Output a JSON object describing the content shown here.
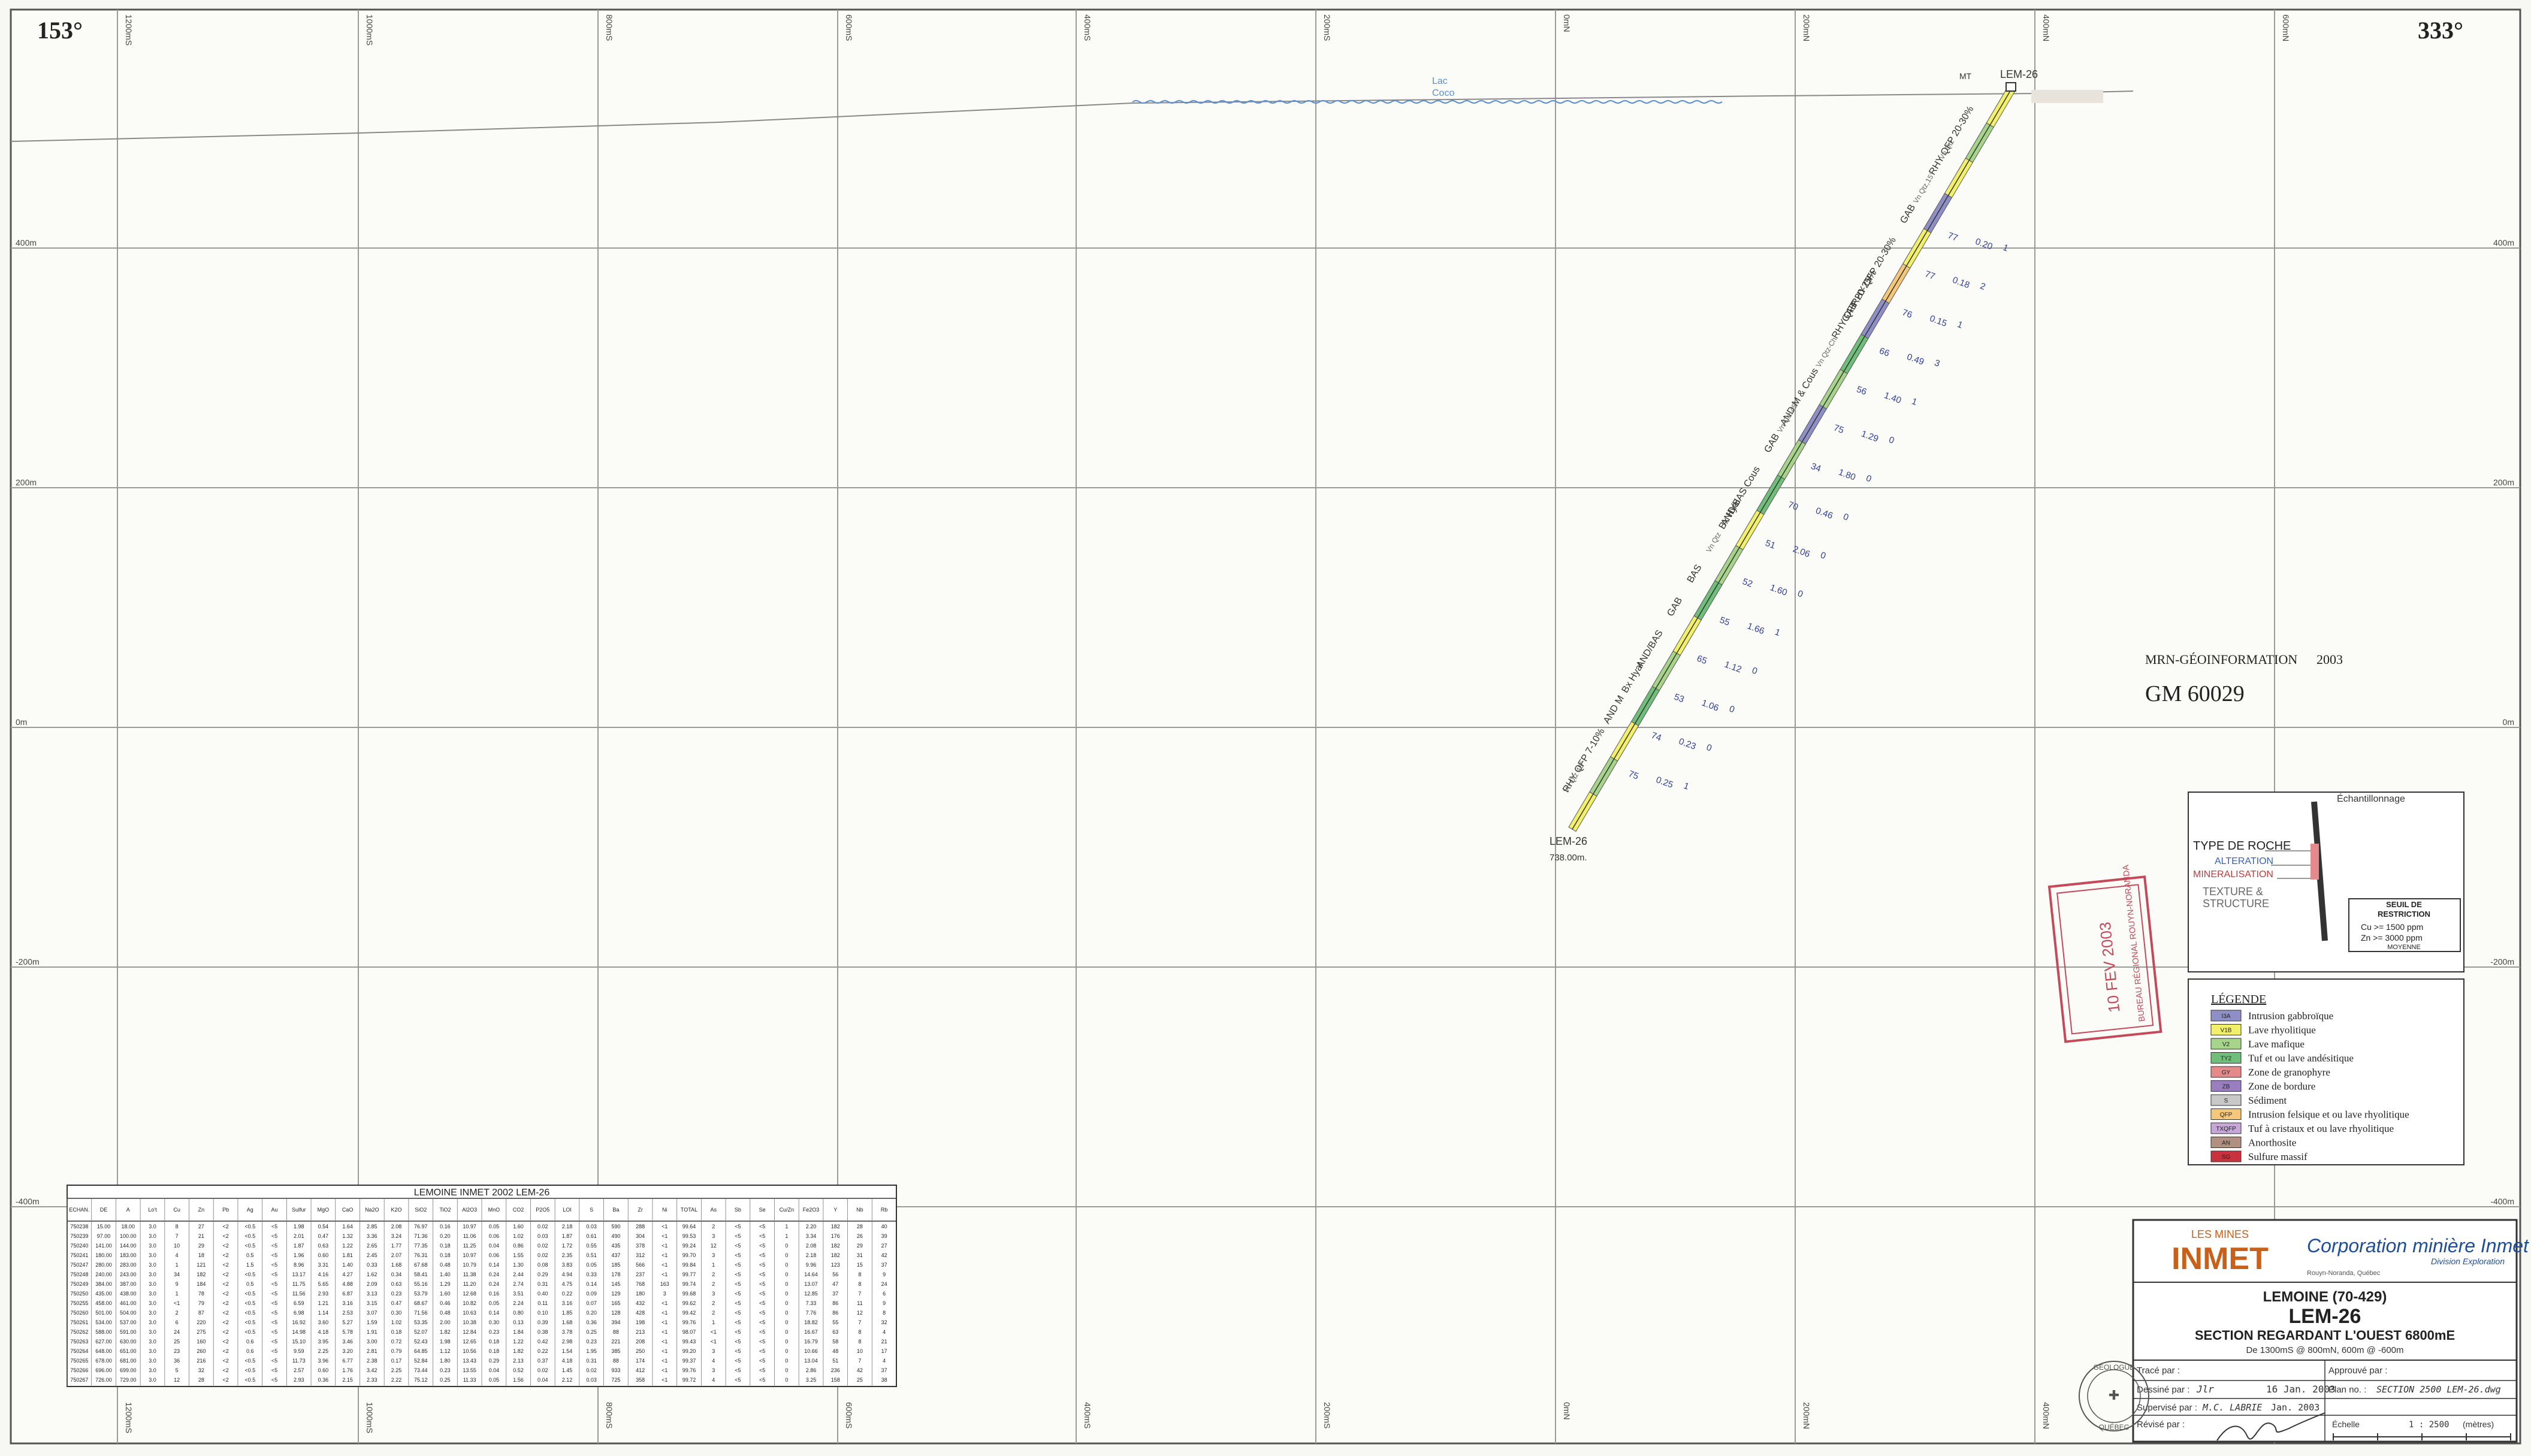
{
  "azimuth_left": "153°",
  "azimuth_right": "333°",
  "top_labels": [
    "1200mS",
    "1000mS",
    "800mS",
    "600mS",
    "400mS",
    "200mS",
    "0mN",
    "200mN",
    "400mN",
    "600mN"
  ],
  "bottom_labels": [
    "1200mS",
    "1000mS",
    "800mS",
    "600mS",
    "400mS",
    "200mS",
    "0mN",
    "200mN",
    "400mN"
  ],
  "elevation_labels": [
    "400m",
    "200m",
    "0m",
    "-200m",
    "-400m"
  ],
  "lake_label": [
    "Lac",
    "Coco"
  ],
  "hole": {
    "collar_label": "LEM-26",
    "collar_prefix": "MT",
    "end_label": "LEM-26",
    "end_depth": "738.00m."
  },
  "left_annotations": [
    "RHY QFP 20-30%",
    "Vn Qtz",
    "Vn Qtz,15°",
    "GAB",
    "RHY QFP 20-30%",
    "RHY QFP 20-25%",
    "GAB",
    "Vn Qtz-Chl",
    "AND M & Cous",
    "Vn Qtz 45°",
    "GAB",
    "AND/BAS Cous",
    "Bx Hyal",
    "Vn Qtz",
    "BAS",
    "GAB",
    "AND/BAS",
    "Bx Hyal",
    "AND M",
    "RHY QFP 7-10%",
    "Vn Qtz 45°"
  ],
  "assays": [
    [
      "77",
      "0.20",
      "1"
    ],
    [
      "77",
      "0.18",
      "2"
    ],
    [
      "76",
      "0.15",
      "1"
    ],
    [
      "66",
      "0.49",
      "3"
    ],
    [
      "56",
      "1.40",
      "1"
    ],
    [
      "75",
      "1.29",
      "0"
    ],
    [
      "34",
      "1.80",
      "0"
    ],
    [
      "70",
      "0.46",
      "0"
    ],
    [
      "51",
      "2.06",
      "0"
    ],
    [
      "52",
      "1.60",
      "0"
    ],
    [
      "55",
      "1.66",
      "1"
    ],
    [
      "65",
      "1.12",
      "0"
    ],
    [
      "53",
      "1.06",
      "0"
    ],
    [
      "74",
      "0.23",
      "0"
    ],
    [
      "75",
      "0.25",
      "1"
    ]
  ],
  "stamp": {
    "line1": "MRN-GÉOINFORMATION",
    "year": "2003",
    "id": "GM 60029"
  },
  "received_stamp": {
    "date": "10 FEV 2003",
    "office": "BUREAU RÉGIONAL ROUYN-NORANDA"
  },
  "key_box": {
    "echantillonnage": "Échantillonnage",
    "type_de_roche": "TYPE DE ROCHE",
    "alteration": "ALTERATION",
    "mineralisation": "MINERALISATION",
    "texture": "TEXTURE &",
    "structure": "STRUCTURE",
    "seuil_title": [
      "SEUIL DE",
      "RESTRICTION"
    ],
    "seuil_cu": "Cu >= 1500 ppm",
    "seuil_zn": "Zn >= 3000 ppm",
    "seuil_moy": "MOYENNE"
  },
  "legend": {
    "title": "LÉGENDE",
    "items": [
      {
        "code": "I3A",
        "label": "Intrusion gabbroïque",
        "color": "#8f8fc8"
      },
      {
        "code": "V1B",
        "label": "Lave rhyolitique",
        "color": "#f2ef6a"
      },
      {
        "code": "V2",
        "label": "Lave mafique",
        "color": "#a6d48a"
      },
      {
        "code": "TY2",
        "label": "Tuf et ou lave andésitique",
        "color": "#6fbf7a"
      },
      {
        "code": "GY",
        "label": "Zone de granophyre",
        "color": "#e48a8a"
      },
      {
        "code": "ZB",
        "label": "Zone de bordure",
        "color": "#9a7fc0"
      },
      {
        "code": "S",
        "label": "Sédiment",
        "color": "#c8c8c8"
      },
      {
        "code": "QFP",
        "label": "Intrusion felsique et ou lave rhyolitique",
        "color": "#f5c77a"
      },
      {
        "code": "TXQFP",
        "label": "Tuf à cristaux et ou lave rhyolitique",
        "color": "#c7a6d8"
      },
      {
        "code": "AN",
        "label": "Anorthosite",
        "color": "#b09080"
      },
      {
        "code": "SG",
        "label": "Sulfure massif",
        "color": "#c8323c"
      }
    ]
  },
  "table": {
    "title": "LEMOINE INMET 2002     LEM-26",
    "columns": [
      "ECHAN.",
      "DE",
      "A",
      "Lo't",
      "Cu",
      "Zn",
      "Pb",
      "Ag",
      "Au",
      "Sulfur",
      "MgO",
      "CaO",
      "Na2O",
      "K2O",
      "SiO2",
      "TiO2",
      "Al2O3",
      "MnO",
      "CO2",
      "P2O5",
      "LOI",
      "S",
      "Ba",
      "Zr",
      "Ni",
      "TOTAL",
      "As",
      "Sb",
      "Se",
      "Cu/Zn",
      "Fe2O3",
      "Y",
      "Nb",
      "Rb"
    ],
    "rows": [
      [
        "750238",
        "15.00",
        "18.00",
        "3.0",
        "8",
        "27",
        "<2",
        "<0.5",
        "<5",
        "1.98",
        "0.54",
        "1.64",
        "2.85",
        "2.08",
        "76.97",
        "0.16",
        "10.97",
        "0.05",
        "1.60",
        "0.02",
        "2.18",
        "0.03",
        "590",
        "288",
        "<1",
        "99.64",
        "2",
        "<5",
        "<5",
        "1",
        "2.20",
        "182",
        "28",
        "40"
      ],
      [
        "750239",
        "97.00",
        "100.00",
        "3.0",
        "7",
        "21",
        "<2",
        "<0.5",
        "<5",
        "2.01",
        "0.47",
        "1.32",
        "3.36",
        "3.24",
        "71.36",
        "0.20",
        "11.06",
        "0.06",
        "1.02",
        "0.03",
        "1.87",
        "0.61",
        "490",
        "304",
        "<1",
        "99.53",
        "3",
        "<5",
        "<5",
        "1",
        "3.34",
        "176",
        "26",
        "39"
      ],
      [
        "750240",
        "141.00",
        "144.00",
        "3.0",
        "10",
        "29",
        "<2",
        "<0.5",
        "<5",
        "1.87",
        "0.63",
        "1.22",
        "2.65",
        "1.77",
        "77.35",
        "0.18",
        "11.25",
        "0.04",
        "0.86",
        "0.02",
        "1.72",
        "0.55",
        "435",
        "378",
        "<1",
        "99.24",
        "12",
        "<5",
        "<5",
        "0",
        "2.08",
        "182",
        "29",
        "27"
      ],
      [
        "750241",
        "180.00",
        "183.00",
        "3.0",
        "4",
        "18",
        "<2",
        "0.5",
        "<5",
        "1.96",
        "0.60",
        "1.81",
        "2.45",
        "2.07",
        "76.31",
        "0.18",
        "10.97",
        "0.06",
        "1.55",
        "0.02",
        "2.35",
        "0.51",
        "437",
        "312",
        "<1",
        "99.70",
        "3",
        "<5",
        "<5",
        "0",
        "2.18",
        "182",
        "31",
        "42"
      ],
      [
        "750247",
        "280.00",
        "283.00",
        "3.0",
        "1",
        "121",
        "<2",
        "1.5",
        "<5",
        "8.96",
        "3.31",
        "1.40",
        "0.33",
        "1.68",
        "67.68",
        "0.48",
        "10.79",
        "0.14",
        "1.30",
        "0.08",
        "3.83",
        "0.05",
        "185",
        "566",
        "<1",
        "99.84",
        "1",
        "<5",
        "<5",
        "0",
        "9.96",
        "123",
        "15",
        "37"
      ],
      [
        "750248",
        "240.00",
        "243.00",
        "3.0",
        "34",
        "182",
        "<2",
        "<0.5",
        "<5",
        "13.17",
        "4.16",
        "4.27",
        "1.62",
        "0.34",
        "58.41",
        "1.40",
        "11.38",
        "0.24",
        "2.44",
        "0.29",
        "4.94",
        "0.33",
        "178",
        "237",
        "<1",
        "99.77",
        "2",
        "<5",
        "<5",
        "0",
        "14.64",
        "56",
        "8",
        "9"
      ],
      [
        "750249",
        "384.00",
        "387.00",
        "3.0",
        "9",
        "184",
        "<2",
        "0.5",
        "<5",
        "11.75",
        "5.65",
        "4.88",
        "2.09",
        "0.63",
        "55.16",
        "1.29",
        "11.20",
        "0.24",
        "2.74",
        "0.31",
        "4.75",
        "0.14",
        "145",
        "768",
        "163",
        "99.74",
        "2",
        "<5",
        "<5",
        "0",
        "13.07",
        "47",
        "8",
        "24"
      ],
      [
        "750250",
        "435.00",
        "438.00",
        "3.0",
        "1",
        "78",
        "<2",
        "<0.5",
        "<5",
        "11.56",
        "2.93",
        "6.87",
        "3.13",
        "0.23",
        "53.79",
        "1.60",
        "12.68",
        "0.16",
        "3.51",
        "0.40",
        "0.22",
        "0.09",
        "129",
        "180",
        "3",
        "99.68",
        "3",
        "<5",
        "<5",
        "0",
        "12.85",
        "37",
        "7",
        "6"
      ],
      [
        "750255",
        "458.00",
        "461.00",
        "3.0",
        "<1",
        "79",
        "<2",
        "<0.5",
        "<5",
        "6.59",
        "1.21",
        "3.16",
        "3.15",
        "0.47",
        "68.67",
        "0.46",
        "10.82",
        "0.05",
        "2.24",
        "0.11",
        "3.16",
        "0.07",
        "165",
        "432",
        "<1",
        "99.62",
        "2",
        "<5",
        "<5",
        "0",
        "7.33",
        "86",
        "11",
        "9"
      ],
      [
        "750260",
        "501.00",
        "504.00",
        "3.0",
        "2",
        "87",
        "<2",
        "<0.5",
        "<5",
        "6.98",
        "1.14",
        "2.53",
        "3.07",
        "0.30",
        "71.56",
        "0.48",
        "10.63",
        "0.14",
        "0.80",
        "0.10",
        "1.85",
        "0.20",
        "128",
        "428",
        "<1",
        "99.42",
        "2",
        "<5",
        "<5",
        "0",
        "7.76",
        "86",
        "12",
        "8"
      ],
      [
        "750261",
        "534.00",
        "537.00",
        "3.0",
        "6",
        "220",
        "<2",
        "<0.5",
        "<5",
        "16.92",
        "3.60",
        "5.27",
        "1.59",
        "1.02",
        "53.35",
        "2.00",
        "10.38",
        "0.30",
        "0.13",
        "0.39",
        "1.68",
        "0.36",
        "394",
        "198",
        "<1",
        "99.76",
        "1",
        "<5",
        "<5",
        "0",
        "18.82",
        "55",
        "7",
        "32"
      ],
      [
        "750262",
        "588.00",
        "591.00",
        "3.0",
        "24",
        "275",
        "<2",
        "<0.5",
        "<5",
        "14.98",
        "4.18",
        "5.78",
        "1.91",
        "0.18",
        "52.07",
        "1.82",
        "12.84",
        "0.23",
        "1.84",
        "0.38",
        "3.78",
        "0.25",
        "88",
        "213",
        "<1",
        "98.07",
        "<1",
        "<5",
        "<5",
        "0",
        "16.67",
        "63",
        "8",
        "4"
      ],
      [
        "750263",
        "627.00",
        "630.00",
        "3.0",
        "25",
        "160",
        "<2",
        "0.6",
        "<5",
        "15.10",
        "3.95",
        "3.46",
        "3.00",
        "0.72",
        "52.43",
        "1.98",
        "12.65",
        "0.18",
        "1.22",
        "0.42",
        "2.98",
        "0.23",
        "221",
        "208",
        "<1",
        "99.43",
        "<1",
        "<5",
        "<5",
        "0",
        "16.79",
        "58",
        "8",
        "21"
      ],
      [
        "750264",
        "648.00",
        "651.00",
        "3.0",
        "23",
        "260",
        "<2",
        "0.6",
        "<5",
        "9.59",
        "2.25",
        "3.20",
        "2.81",
        "0.79",
        "64.85",
        "1.12",
        "10.56",
        "0.18",
        "1.82",
        "0.22",
        "1.54",
        "1.95",
        "385",
        "250",
        "<1",
        "99.20",
        "3",
        "<5",
        "<5",
        "0",
        "10.66",
        "48",
        "10",
        "17"
      ],
      [
        "750265",
        "678.00",
        "681.00",
        "3.0",
        "36",
        "216",
        "<2",
        "<0.5",
        "<5",
        "11.73",
        "3.96",
        "6.77",
        "2.38",
        "0.17",
        "52.84",
        "1.80",
        "13.43",
        "0.29",
        "2.13",
        "0.37",
        "4.18",
        "0.31",
        "88",
        "174",
        "<1",
        "99.37",
        "4",
        "<5",
        "<5",
        "0",
        "13.04",
        "51",
        "7",
        "4"
      ],
      [
        "750266",
        "696.00",
        "699.00",
        "3.0",
        "5",
        "32",
        "<2",
        "<0.5",
        "<5",
        "2.57",
        "0.60",
        "1.76",
        "3.42",
        "2.25",
        "73.44",
        "0.23",
        "13.55",
        "0.04",
        "0.52",
        "0.02",
        "1.45",
        "0.02",
        "933",
        "412",
        "<1",
        "99.76",
        "3",
        "<5",
        "<5",
        "0",
        "2.86",
        "236",
        "42",
        "37"
      ],
      [
        "750267",
        "726.00",
        "729.00",
        "3.0",
        "12",
        "28",
        "<2",
        "<0.5",
        "<5",
        "2.93",
        "0.36",
        "2.15",
        "2.33",
        "2.22",
        "75.12",
        "0.25",
        "11.33",
        "0.05",
        "1.56",
        "0.04",
        "2.12",
        "0.03",
        "725",
        "358",
        "<1",
        "99.72",
        "4",
        "<5",
        "<5",
        "0",
        "3.25",
        "158",
        "25",
        "38"
      ]
    ]
  },
  "title_block": {
    "company_small": "LES MINES",
    "company_big": "INMET",
    "corporation": "Corporation minière Inmet",
    "division": "Division Exploration",
    "city": "Rouyn-Noranda, Québec",
    "project": "LEMOINE (70-429)",
    "hole": "LEM-26",
    "section": "SECTION REGARDANT L'OUEST 6800mE",
    "range": "De 1300mS @ 800mN, 600m @ -600m",
    "trace_par": "Tracé par :",
    "approuve_par": "Approuvé par :",
    "dessine_label": "Dessiné par :",
    "dessine_value": "Jlr",
    "date1": "16 Jan. 2003",
    "plan_label": "Plan no. :",
    "plan_value": "SECTION 2500 LEM-26.dwg",
    "supervise_label": "Supervisé par :",
    "supervise_value": "M.C. LABRIE",
    "date2": "Jan. 2003",
    "revise_label": "Révisé par :",
    "echelle_label": "Échelle",
    "echelle_value": "1 : 2500",
    "echelle_unit": "(mètres)",
    "seal_text": [
      "GÉOLOGUE",
      "QUÉBEC"
    ]
  }
}
